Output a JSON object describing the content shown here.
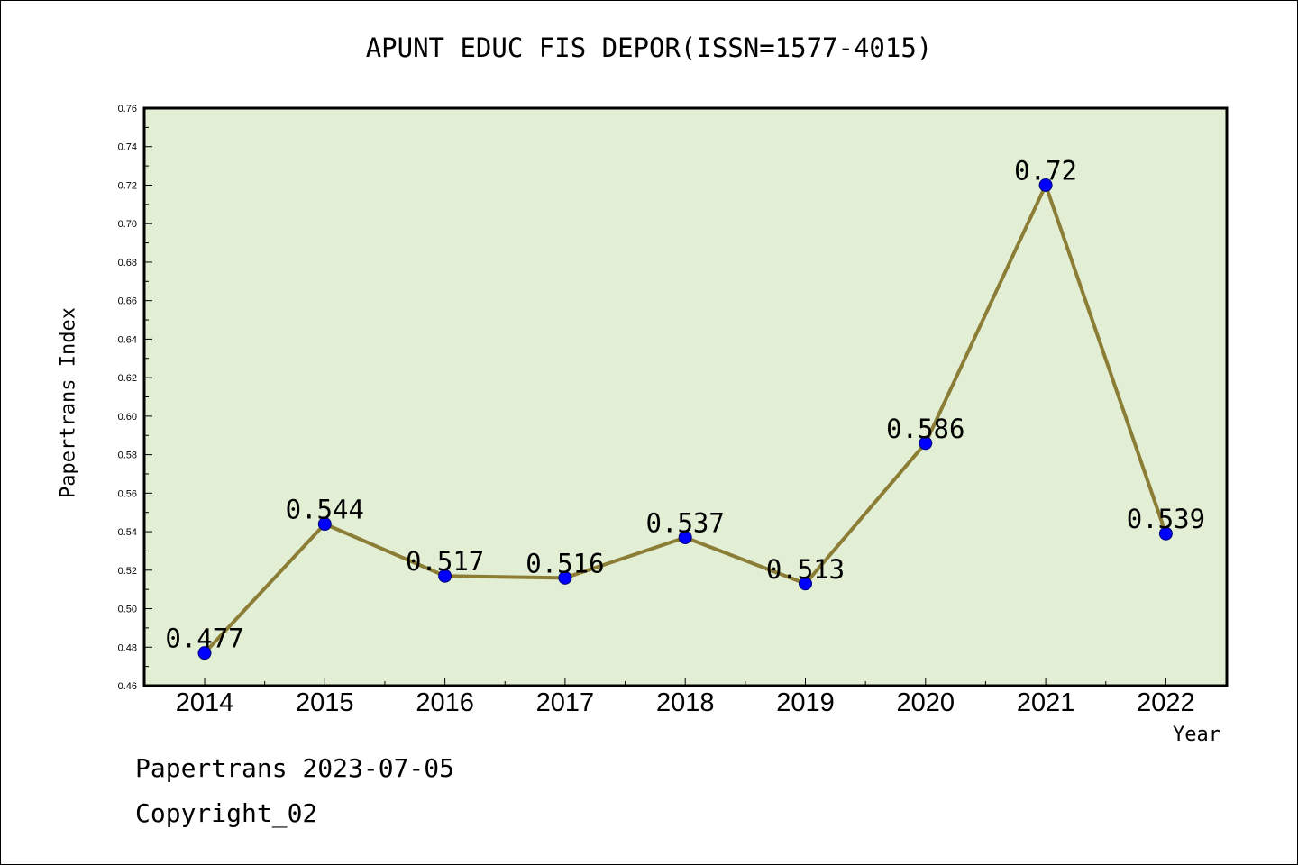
{
  "footer": {
    "date_line": "Papertrans 2023-07-05",
    "copyright": "Copyright_02"
  },
  "chart_data": {
    "type": "line",
    "title": "APUNT EDUC FIS DEPOR(ISSN=1577-4015)",
    "xlabel": "Year",
    "ylabel": "Papertrans Index",
    "categories": [
      "2014",
      "2015",
      "2016",
      "2017",
      "2018",
      "2019",
      "2020",
      "2021",
      "2022"
    ],
    "series": [
      {
        "values": [
          0.477,
          0.544,
          0.517,
          0.516,
          0.537,
          0.513,
          0.586,
          0.72,
          0.539
        ]
      }
    ],
    "data_labels": [
      "0.477",
      "0.544",
      "0.517",
      "0.516",
      "0.537",
      "0.513",
      "0.586",
      "0.72",
      "0.539"
    ],
    "ylim": [
      0.46,
      0.76
    ],
    "yticks": [
      "0.46",
      "0.48",
      "0.50",
      "0.52",
      "0.54",
      "0.56",
      "0.58",
      "0.60",
      "0.62",
      "0.64",
      "0.66",
      "0.68",
      "0.70",
      "0.72",
      "0.74",
      "0.76"
    ],
    "grid": false,
    "colors": {
      "plot_background": "#e2efd5",
      "line": "#8c7d36",
      "marker": "#0000ff"
    }
  }
}
